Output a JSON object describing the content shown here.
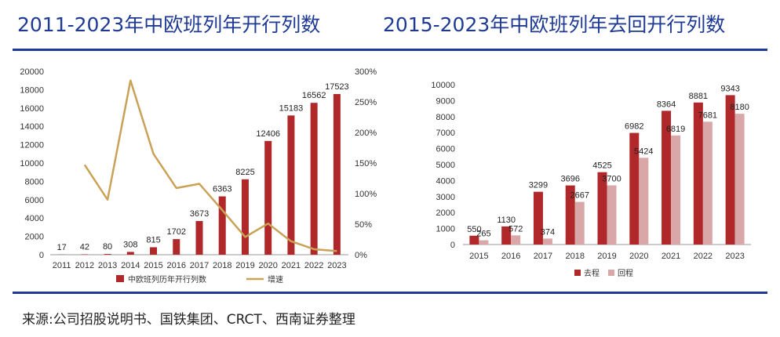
{
  "header": {
    "left_title": "2011-2023年中欧班列年开行列数",
    "right_title": "2015-2023年中欧班列年去回开行列数"
  },
  "footer": {
    "source": "来源:公司招股说明书、国铁集团、CRCT、西南证券整理"
  },
  "colors": {
    "accent": "#1f3a93",
    "bar_dark": "#b0282a",
    "bar_light": "#d9a7a7",
    "line_gold": "#c9a257"
  },
  "chart_data": [
    {
      "type": "bar",
      "title": "2011-2023年中欧班列年开行列数",
      "categories": [
        "2011",
        "2012",
        "2013",
        "2014",
        "2015",
        "2016",
        "2017",
        "2018",
        "2019",
        "2020",
        "2021",
        "2022",
        "2023"
      ],
      "series": [
        {
          "name": "中欧班列历年开行列数",
          "type": "bar",
          "axis": "left",
          "values": [
            17,
            42,
            80,
            308,
            815,
            1702,
            3673,
            6363,
            8225,
            12406,
            15183,
            16562,
            17523
          ],
          "labels": [
            "17",
            "42",
            "80",
            "308",
            "815",
            "1702",
            "3673",
            "6363",
            "8225",
            "12406",
            "15183",
            "16562",
            "17523"
          ]
        },
        {
          "name": "增速",
          "type": "line",
          "axis": "right",
          "values": [
            null,
            147,
            90,
            285,
            165,
            109,
            116,
            73,
            29,
            51,
            22,
            9,
            6
          ]
        }
      ],
      "ylim": [
        0,
        20000
      ],
      "yticks": [
        "0",
        "2000",
        "4000",
        "6000",
        "8000",
        "10000",
        "12000",
        "14000",
        "16000",
        "18000",
        "20000"
      ],
      "y2lim": [
        0,
        300
      ],
      "y2ticks": [
        "0%",
        "50%",
        "100%",
        "150%",
        "200%",
        "250%",
        "300%"
      ],
      "legend": {
        "bar": "中欧班列历年开行列数",
        "line": "增速",
        "position": "bottom"
      }
    },
    {
      "type": "bar",
      "title": "2015-2023年中欧班列年去回开行列数",
      "categories": [
        "2015",
        "2016",
        "2017",
        "2018",
        "2019",
        "2020",
        "2021",
        "2022",
        "2023"
      ],
      "series": [
        {
          "name": "去程",
          "values": [
            550,
            1130,
            3299,
            3696,
            4525,
            6982,
            8364,
            8881,
            9343
          ],
          "labels": [
            "550",
            "1130",
            "3299",
            "3696",
            "4525",
            "6982",
            "8364",
            "8881",
            "9343"
          ]
        },
        {
          "name": "回程",
          "values": [
            265,
            572,
            374,
            2667,
            3700,
            5424,
            6819,
            7681,
            8180
          ],
          "labels": [
            "265",
            "572",
            "374",
            "2667",
            "3700",
            "5424",
            "6819",
            "7681",
            "8180"
          ]
        }
      ],
      "ylim": [
        0,
        10000
      ],
      "yticks": [
        "0",
        "1000",
        "2000",
        "3000",
        "4000",
        "5000",
        "6000",
        "7000",
        "8000",
        "9000",
        "10000"
      ],
      "legend": {
        "items": [
          "去程",
          "回程"
        ],
        "position": "bottom"
      }
    }
  ]
}
